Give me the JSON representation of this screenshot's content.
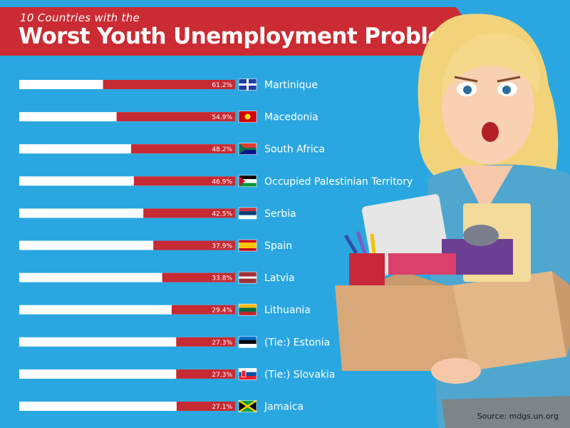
{
  "header": {
    "subtitle": "10 Countries with the",
    "title": "Worst Youth Unemployment Problems"
  },
  "source": "Source: mdgs.un.org",
  "colors": {
    "background": "#2aa7e0",
    "banner": "#cb2b33",
    "bar_fill": "#c62a33",
    "bar_track": "#ffffff"
  },
  "chart_data": {
    "type": "bar",
    "orientation": "horizontal",
    "title": "Worst Youth Unemployment Problems",
    "subtitle": "10 Countries with the",
    "xlim": [
      0,
      100
    ],
    "categories": [
      "Martinique",
      "Macedonia",
      "South Africa",
      "Occupied Palestinian Territory",
      "Serbia",
      "Spain",
      "Latvia",
      "Lithuania",
      "(Tie:) Estonia",
      "(Tie:) Slovakia",
      "Jamaica"
    ],
    "values": [
      61.2,
      54.9,
      48.2,
      46.9,
      42.5,
      37.9,
      33.8,
      29.4,
      27.3,
      27.3,
      27.1
    ],
    "value_labels": [
      "61.2%",
      "54.9%",
      "48.2%",
      "46.9%",
      "42.5%",
      "37.9%",
      "33.8%",
      "29.4%",
      "27.3%",
      "27.3%",
      "27.1%"
    ],
    "flags": [
      "martinique-flag-icon",
      "macedonia-flag-icon",
      "south-africa-flag-icon",
      "palestine-flag-icon",
      "serbia-flag-icon",
      "spain-flag-icon",
      "latvia-flag-icon",
      "lithuania-flag-icon",
      "estonia-flag-icon",
      "slovakia-flag-icon",
      "jamaica-flag-icon"
    ]
  }
}
